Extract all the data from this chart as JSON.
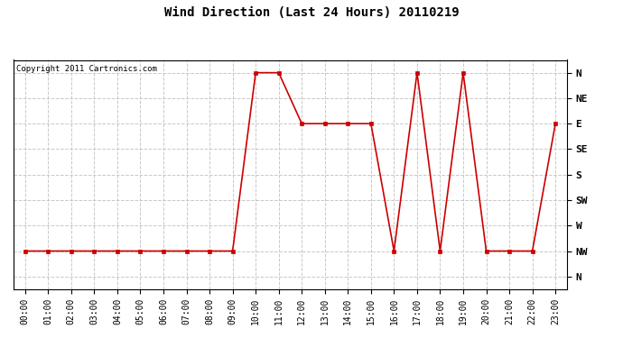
{
  "title": "Wind Direction (Last 24 Hours) 20110219",
  "copyright_text": "Copyright 2011 Cartronics.com",
  "background_color": "#ffffff",
  "plot_bg_color": "#ffffff",
  "grid_color": "#c8c8c8",
  "line_color": "#cc0000",
  "marker_color": "#cc0000",
  "x_labels": [
    "00:00",
    "01:00",
    "02:00",
    "03:00",
    "04:00",
    "05:00",
    "06:00",
    "07:00",
    "08:00",
    "09:00",
    "10:00",
    "11:00",
    "12:00",
    "13:00",
    "14:00",
    "15:00",
    "16:00",
    "17:00",
    "18:00",
    "19:00",
    "20:00",
    "21:00",
    "22:00",
    "23:00"
  ],
  "y_tick_positions": [
    0,
    1,
    2,
    3,
    4,
    5,
    6,
    7,
    8
  ],
  "y_tick_labels": [
    "N",
    "NE",
    "E",
    "SE",
    "S",
    "SW",
    "W",
    "NW",
    "N"
  ],
  "data_x": [
    0,
    1,
    2,
    3,
    4,
    5,
    6,
    7,
    8,
    9,
    10,
    11,
    12,
    13,
    14,
    15,
    16,
    17,
    18,
    19,
    20,
    21,
    22,
    23
  ],
  "data_y": [
    7,
    7,
    7,
    7,
    7,
    7,
    7,
    7,
    7,
    7,
    0,
    0,
    2,
    2,
    2,
    2,
    7,
    0,
    7,
    0,
    7,
    7,
    7,
    2
  ],
  "ylim_min": -0.5,
  "ylim_max": 8.5,
  "title_fontsize": 10,
  "tick_fontsize": 7,
  "ytick_fontsize": 8
}
